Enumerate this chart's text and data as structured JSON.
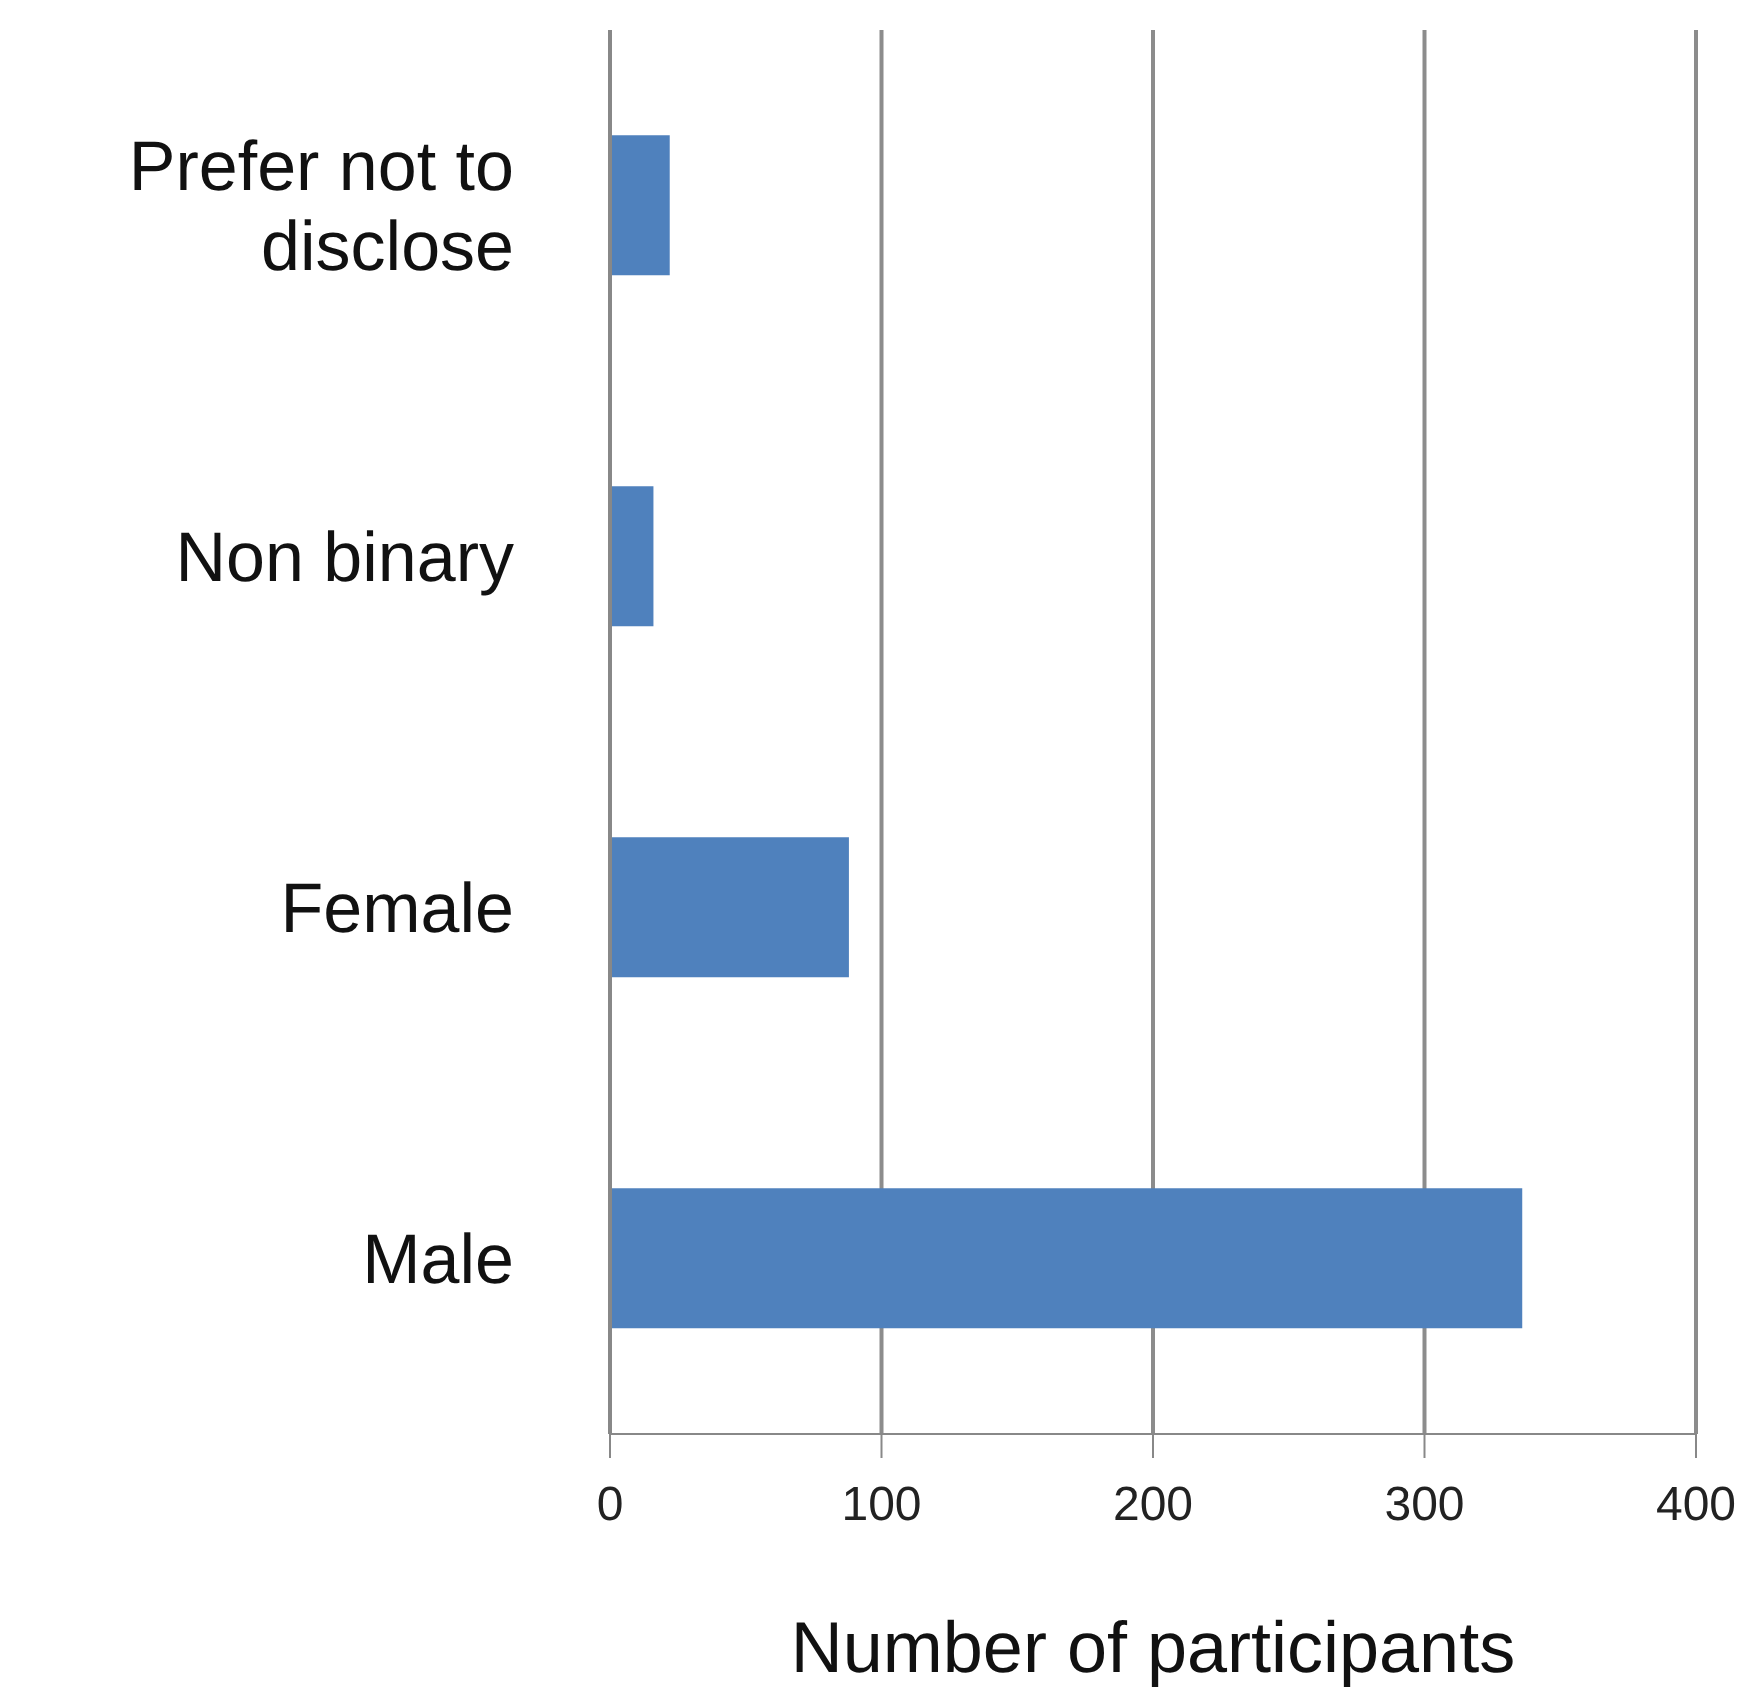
{
  "chart_data": {
    "type": "bar",
    "orientation": "horizontal",
    "xlabel": "Number of participants",
    "categories": [
      "Prefer not to disclose",
      "Non binary",
      "Female",
      "Male"
    ],
    "values": [
      22,
      16,
      88,
      336
    ],
    "color": "#4f81bd",
    "xlim": [
      0,
      400
    ],
    "xticks": [
      0,
      100,
      200,
      300,
      400
    ],
    "grid": "x",
    "legend": false
  }
}
